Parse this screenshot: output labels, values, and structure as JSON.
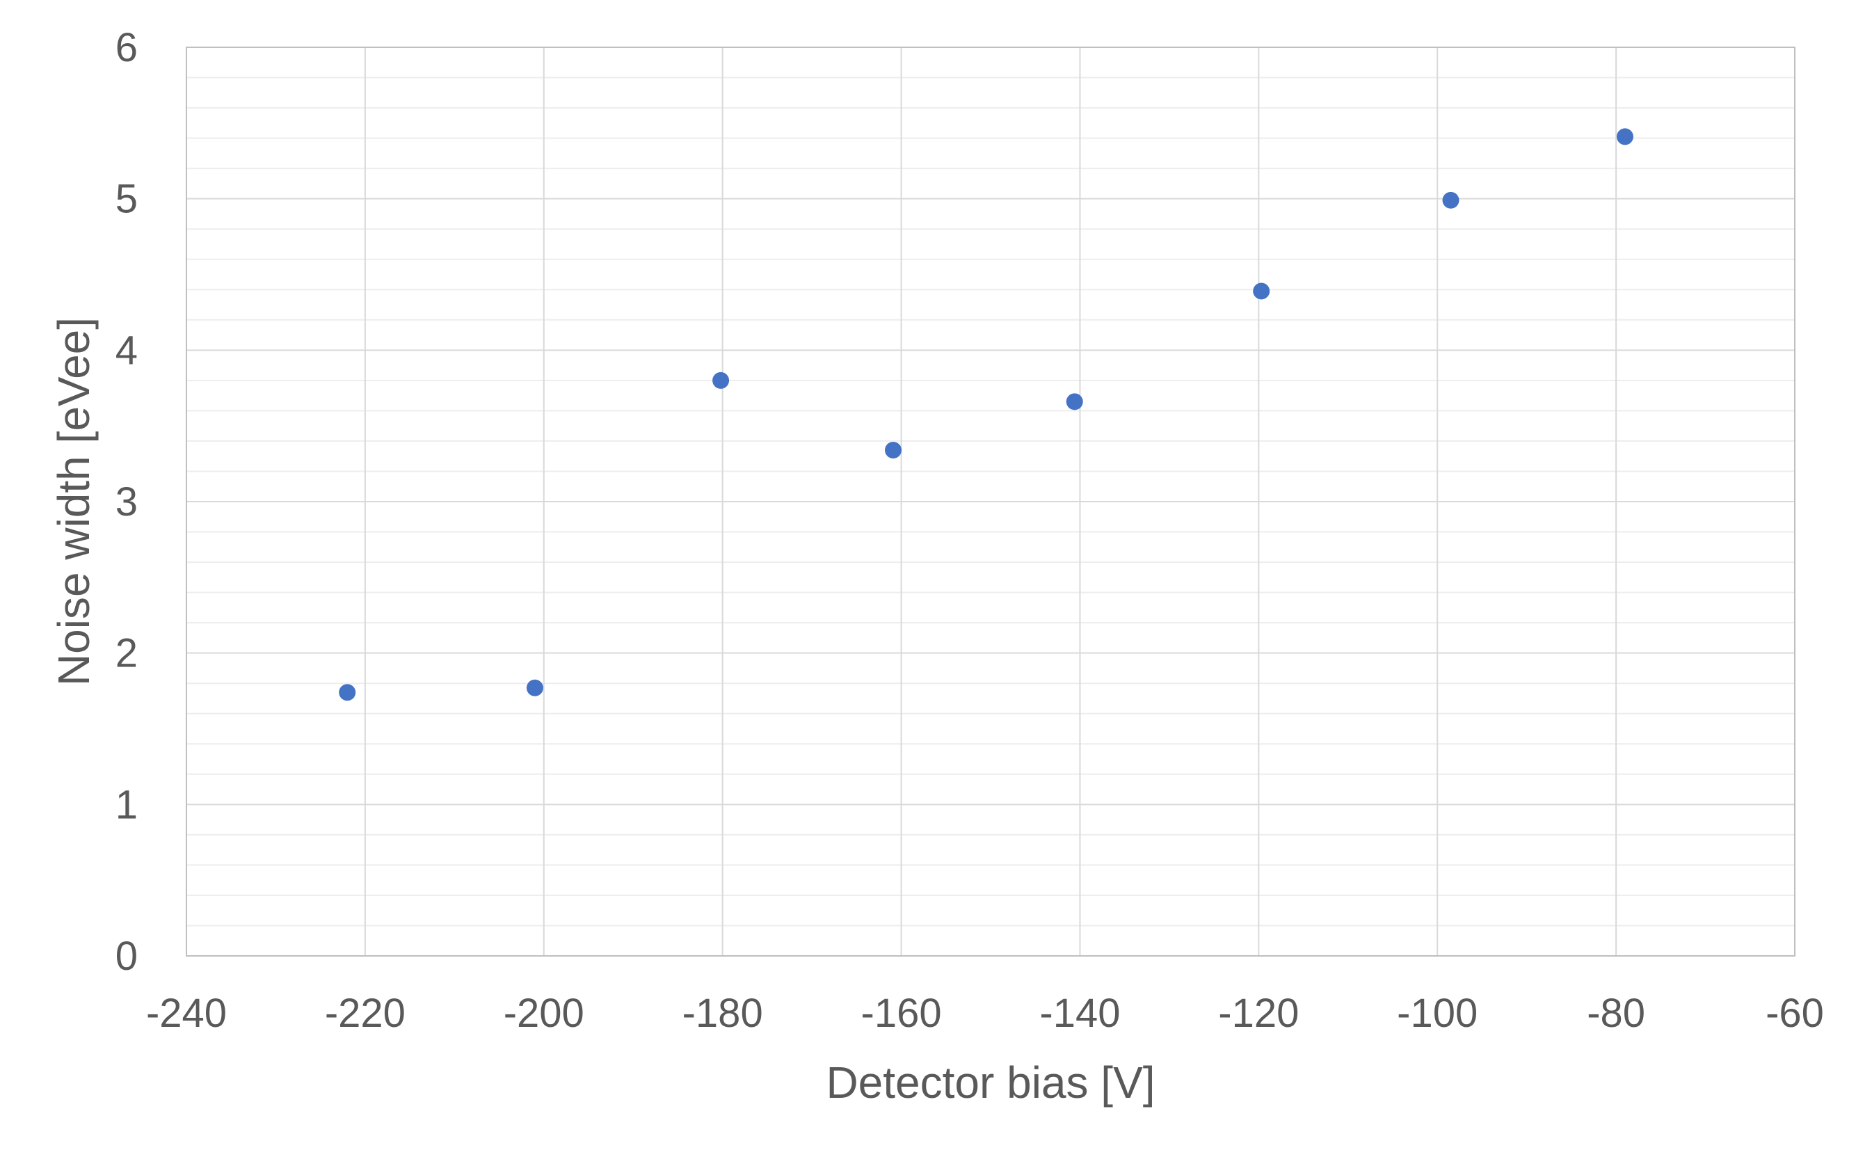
{
  "chart_data": {
    "type": "scatter",
    "title": "",
    "xlabel": "Detector bias [V]",
    "ylabel": "Noise width [eVee]",
    "xlim": [
      -240,
      -60
    ],
    "ylim": [
      0,
      6
    ],
    "x_ticks": [
      -240,
      -220,
      -200,
      -180,
      -160,
      -140,
      -120,
      -100,
      -80,
      -60
    ],
    "y_ticks": [
      0,
      1,
      2,
      3,
      4,
      5,
      6
    ],
    "grid": true,
    "minor_grid": true,
    "legend": "none",
    "series": [
      {
        "color": "#4472C4",
        "points": [
          {
            "x": -222,
            "y": 1.74
          },
          {
            "x": -201,
            "y": 1.77
          },
          {
            "x": -180.2,
            "y": 3.8
          },
          {
            "x": -160.9,
            "y": 3.34
          },
          {
            "x": -140.6,
            "y": 3.66
          },
          {
            "x": -119.7,
            "y": 4.39
          },
          {
            "x": -98.5,
            "y": 4.99
          },
          {
            "x": -79,
            "y": 5.41
          }
        ]
      }
    ]
  }
}
